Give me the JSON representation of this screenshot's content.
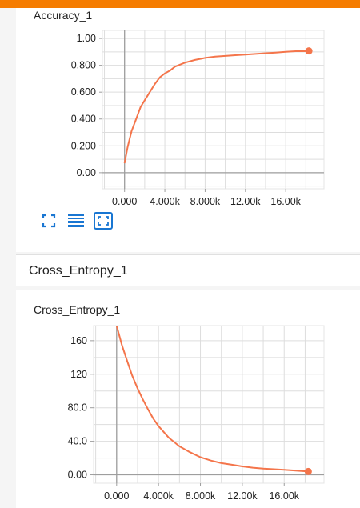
{
  "accent_color": "#f57c00",
  "series_color": "#f4754b",
  "accuracy_card": {
    "title": "Accuracy_1"
  },
  "group": {
    "title": "Cross_Entropy_1"
  },
  "cross_entropy_card": {
    "title": "Cross_Entropy_1"
  },
  "toolbar": {
    "icons": [
      "expand-icon",
      "toggle-log-scale-icon",
      "fit-domain-icon"
    ]
  },
  "chart_data": [
    {
      "type": "line",
      "title": "Accuracy_1",
      "xlabel": "",
      "ylabel": "",
      "xlim": [
        -2200,
        19800
      ],
      "ylim": [
        -0.12,
        1.06
      ],
      "x_ticks": [
        0,
        4000,
        8000,
        12000,
        16000
      ],
      "x_tick_labels": [
        "0.000",
        "4.000k",
        "8.000k",
        "12.00k",
        "16.00k"
      ],
      "y_ticks": [
        0,
        0.2,
        0.4,
        0.6,
        0.8,
        1.0
      ],
      "y_tick_labels": [
        "0.00",
        "0.200",
        "0.400",
        "0.600",
        "0.800",
        "1.00"
      ],
      "grid": true,
      "series": [
        {
          "x": [
            0,
            300,
            700,
            1200,
            1600,
            2000,
            2500,
            3000,
            3500,
            4000,
            4500,
            5000,
            6000,
            7000,
            8000,
            9000,
            10000,
            11000,
            12000,
            13000,
            14000,
            15000,
            16000,
            17000,
            18000,
            18300
          ],
          "values": [
            0.07,
            0.19,
            0.31,
            0.41,
            0.49,
            0.54,
            0.6,
            0.66,
            0.71,
            0.74,
            0.76,
            0.79,
            0.82,
            0.84,
            0.855,
            0.865,
            0.87,
            0.875,
            0.88,
            0.885,
            0.89,
            0.895,
            0.9,
            0.905,
            0.905,
            0.907
          ]
        }
      ]
    },
    {
      "type": "line",
      "title": "Cross_Entropy_1",
      "xlabel": "",
      "ylabel": "",
      "xlim": [
        -2200,
        19800
      ],
      "ylim": [
        -10,
        178
      ],
      "x_ticks": [
        0,
        4000,
        8000,
        12000,
        16000
      ],
      "x_tick_labels": [
        "0.000",
        "4.000k",
        "8.000k",
        "12.00k",
        "16.00k"
      ],
      "y_ticks": [
        0,
        40,
        80,
        120,
        160
      ],
      "y_tick_labels": [
        "0.00",
        "40.0",
        "80.0",
        "120",
        "160"
      ],
      "grid": true,
      "series": [
        {
          "x": [
            0,
            500,
            1000,
            1500,
            2000,
            2500,
            3000,
            3500,
            4000,
            5000,
            6000,
            7000,
            8000,
            9000,
            10000,
            11000,
            12000,
            13000,
            14000,
            16000,
            18300
          ],
          "values": [
            178,
            155,
            136,
            118,
            103,
            90,
            78,
            67,
            58,
            44,
            34,
            27,
            21,
            17,
            14,
            12,
            10,
            8.5,
            7.5,
            6,
            4
          ]
        }
      ]
    }
  ]
}
